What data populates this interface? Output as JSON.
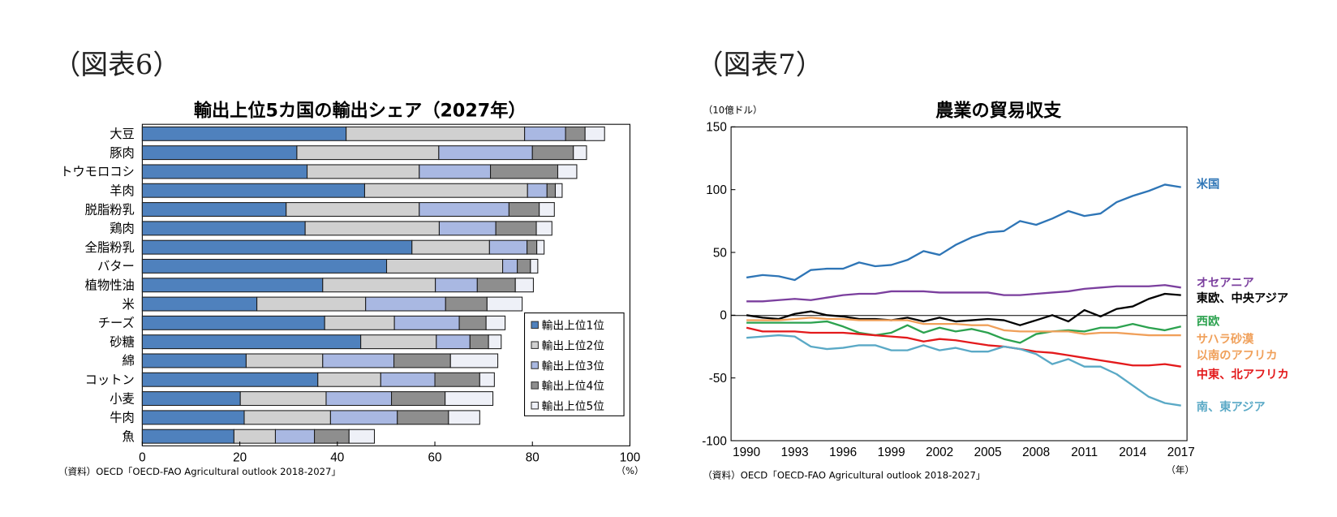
{
  "chart_data": [
    {
      "type": "bar",
      "orientation": "horizontal-stacked",
      "figure_label": "（図表6）",
      "title": "輸出上位5カ国の輸出シェア（2027年）",
      "xlabel": "",
      "x_unit": "（%）",
      "xlim": [
        0,
        100
      ],
      "xticks": [
        "0",
        "20",
        "40",
        "60",
        "80",
        "100"
      ],
      "source": "（資料）OECD「OECD-FAO Agricultural outlook 2018-2027」",
      "legend_position": "bottom-right",
      "categories": [
        "大豆",
        "豚肉",
        "トウモロコシ",
        "羊肉",
        "脱脂粉乳",
        "鶏肉",
        "全脂粉乳",
        "バター",
        "植物性油",
        "米",
        "チーズ",
        "砂糖",
        "綿",
        "コットン",
        "小麦",
        "牛肉",
        "魚"
      ],
      "series": [
        {
          "name": "輸出上位1位",
          "color": "#4f81bd",
          "values": [
            41.8,
            31.7,
            33.8,
            45.6,
            29.5,
            33.4,
            55.3,
            50.1,
            37.0,
            23.5,
            37.4,
            44.8,
            21.3,
            36.0,
            20.1,
            20.9,
            18.8
          ]
        },
        {
          "name": "輸出上位2位",
          "color": "#d0d0d0",
          "values": [
            36.6,
            29.1,
            23.0,
            33.4,
            27.3,
            27.5,
            15.9,
            23.8,
            23.1,
            22.3,
            14.3,
            15.5,
            15.7,
            12.9,
            17.6,
            17.7,
            8.5
          ]
        },
        {
          "name": "輸出上位3位",
          "color": "#a9b8e2",
          "values": [
            8.4,
            19.2,
            14.6,
            4.0,
            18.4,
            11.6,
            7.7,
            3.0,
            8.6,
            16.4,
            13.3,
            6.9,
            14.6,
            11.1,
            13.4,
            13.7,
            8.0
          ]
        },
        {
          "name": "輸出上位4位",
          "color": "#8e8e8e",
          "values": [
            4.0,
            8.4,
            13.8,
            1.7,
            6.2,
            8.3,
            2.0,
            2.7,
            7.8,
            8.5,
            5.5,
            3.8,
            11.6,
            9.2,
            11.0,
            10.5,
            7.1
          ]
        },
        {
          "name": "輸出上位5位",
          "color": "#eef0f7",
          "values": [
            4.0,
            2.7,
            3.9,
            1.4,
            3.1,
            3.2,
            1.5,
            1.5,
            3.7,
            7.2,
            3.9,
            2.6,
            9.7,
            3.0,
            9.8,
            6.4,
            5.2
          ]
        }
      ]
    },
    {
      "type": "line",
      "figure_label": "（図表7）",
      "title": "農業の貿易収支",
      "ylabel": "（10億ドル）",
      "x_unit": "（年）",
      "ylim": [
        -100,
        150
      ],
      "yticks": [
        "150",
        "100",
        "50",
        "0",
        "-50",
        "-100"
      ],
      "xticks": [
        "1990",
        "1993",
        "1996",
        "1999",
        "2002",
        "2005",
        "2008",
        "2011",
        "2014",
        "2017"
      ],
      "source": "（資料）OECD「OECD-FAO Agricultural outlook 2018-2027」",
      "x": [
        1990,
        1991,
        1992,
        1993,
        1994,
        1995,
        1996,
        1997,
        1998,
        1999,
        2000,
        2001,
        2002,
        2003,
        2004,
        2005,
        2006,
        2007,
        2008,
        2009,
        2010,
        2011,
        2012,
        2013,
        2014,
        2015,
        2016,
        2017
      ],
      "series": [
        {
          "name": "米国",
          "color": "#2e75b6",
          "values": [
            30,
            32,
            31,
            28,
            36,
            37,
            37,
            42,
            39,
            40,
            44,
            51,
            48,
            56,
            62,
            66,
            67,
            75,
            72,
            77,
            83,
            79,
            81,
            90,
            95,
            99,
            104,
            102
          ]
        },
        {
          "name": "オセアニア",
          "color": "#7b3f9e",
          "values": [
            11,
            11,
            12,
            13,
            12,
            14,
            16,
            17,
            17,
            19,
            19,
            19,
            18,
            18,
            18,
            18,
            16,
            16,
            17,
            18,
            19,
            21,
            22,
            23,
            23,
            23,
            24,
            22
          ]
        },
        {
          "name": "東欧、中央アジア",
          "color": "#000000",
          "values": [
            0,
            -2,
            -3,
            1,
            3,
            0,
            -1,
            -3,
            -3,
            -4,
            -2,
            -5,
            -2,
            -5,
            -4,
            -3,
            -4,
            -8,
            -4,
            0,
            -5,
            4,
            -1,
            5,
            7,
            13,
            17,
            16
          ]
        },
        {
          "name": "西欧",
          "color": "#2ca24f",
          "values": [
            -6,
            -6,
            -6,
            -6,
            -6,
            -5,
            -9,
            -14,
            -16,
            -14,
            -8,
            -14,
            -10,
            -13,
            -11,
            -14,
            -19,
            -22,
            -15,
            -13,
            -12,
            -13,
            -10,
            -10,
            -7,
            -10,
            -12,
            -9
          ]
        },
        {
          "name": "サハラ砂漠以南のアフリカ",
          "label_lines": [
            "サハラ砂漠",
            "以南のアフリカ"
          ],
          "color": "#f0a05a",
          "values": [
            -4,
            -4,
            -4,
            -3,
            -2,
            -3,
            -3,
            -4,
            -4,
            -4,
            -4,
            -7,
            -7,
            -7,
            -8,
            -8,
            -12,
            -13,
            -13,
            -13,
            -13,
            -15,
            -14,
            -14,
            -15,
            -16,
            -16,
            -16
          ]
        },
        {
          "name": "中東、北アフリカ",
          "color": "#e31a1c",
          "values": [
            -10,
            -13,
            -13,
            -13,
            -14,
            -14,
            -14,
            -15,
            -16,
            -17,
            -18,
            -21,
            -19,
            -20,
            -22,
            -24,
            -25,
            -27,
            -29,
            -30,
            -32,
            -34,
            -36,
            -38,
            -40,
            -40,
            -39,
            -41
          ]
        },
        {
          "name": "南、東アジア",
          "color": "#5aa9c6",
          "values": [
            -18,
            -17,
            -16,
            -17,
            -25,
            -27,
            -26,
            -24,
            -24,
            -28,
            -28,
            -24,
            -28,
            -26,
            -29,
            -29,
            -25,
            -27,
            -31,
            -39,
            -35,
            -41,
            -41,
            -47,
            -56,
            -65,
            -70,
            -72
          ]
        }
      ]
    }
  ]
}
